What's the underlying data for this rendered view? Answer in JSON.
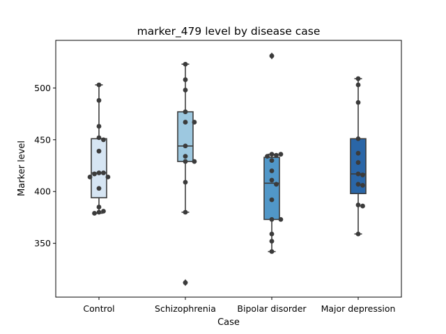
{
  "chart_data": {
    "type": "box",
    "title": "marker_479 level by disease case",
    "xlabel": "Case",
    "ylabel": "Marker level",
    "categories": [
      "Control",
      "Schizophrenia",
      "Bipolar disorder",
      "Major depression"
    ],
    "ylim": [
      298,
      546
    ],
    "yticks": [
      350,
      400,
      450,
      500
    ],
    "colors": {
      "Control": "#d6e5f3",
      "Schizophrenia": "#9dc8e0",
      "Bipolar disorder": "#5197c8",
      "Major depression": "#2a66a7"
    },
    "line_color": "#3b3b3b",
    "point_color": "#3b3b3b",
    "boxes": [
      {
        "category": "Control",
        "whisker_low": 379,
        "q1": 394,
        "median": 418,
        "q3": 451,
        "whisker_high": 503,
        "outliers": []
      },
      {
        "category": "Schizophrenia",
        "whisker_low": 380,
        "q1": 429,
        "median": 444,
        "q3": 477,
        "whisker_high": 523,
        "outliers": [
          312
        ]
      },
      {
        "category": "Bipolar disorder",
        "whisker_low": 342,
        "q1": 373,
        "median": 408,
        "q3": 433,
        "whisker_high": 436,
        "outliers": [
          531
        ]
      },
      {
        "category": "Major depression",
        "whisker_low": 359,
        "q1": 398,
        "median": 417,
        "q3": 451,
        "whisker_high": 509,
        "outliers": []
      }
    ],
    "points": [
      {
        "category": "Control",
        "values": [
          503,
          488,
          463,
          452,
          450,
          439,
          418,
          418,
          417,
          414,
          414,
          403,
          385,
          381,
          380,
          379
        ]
      },
      {
        "category": "Schizophrenia",
        "values": [
          523,
          508,
          498,
          477,
          467,
          467,
          444,
          434,
          429,
          429,
          409,
          380,
          312
        ]
      },
      {
        "category": "Bipolar disorder",
        "values": [
          531,
          436,
          436,
          435,
          434,
          430,
          420,
          411,
          407,
          392,
          373,
          373,
          359,
          352,
          342
        ]
      },
      {
        "category": "Major depression",
        "values": [
          509,
          503,
          486,
          451,
          437,
          428,
          417,
          416,
          407,
          406,
          387,
          386,
          359
        ]
      }
    ]
  }
}
